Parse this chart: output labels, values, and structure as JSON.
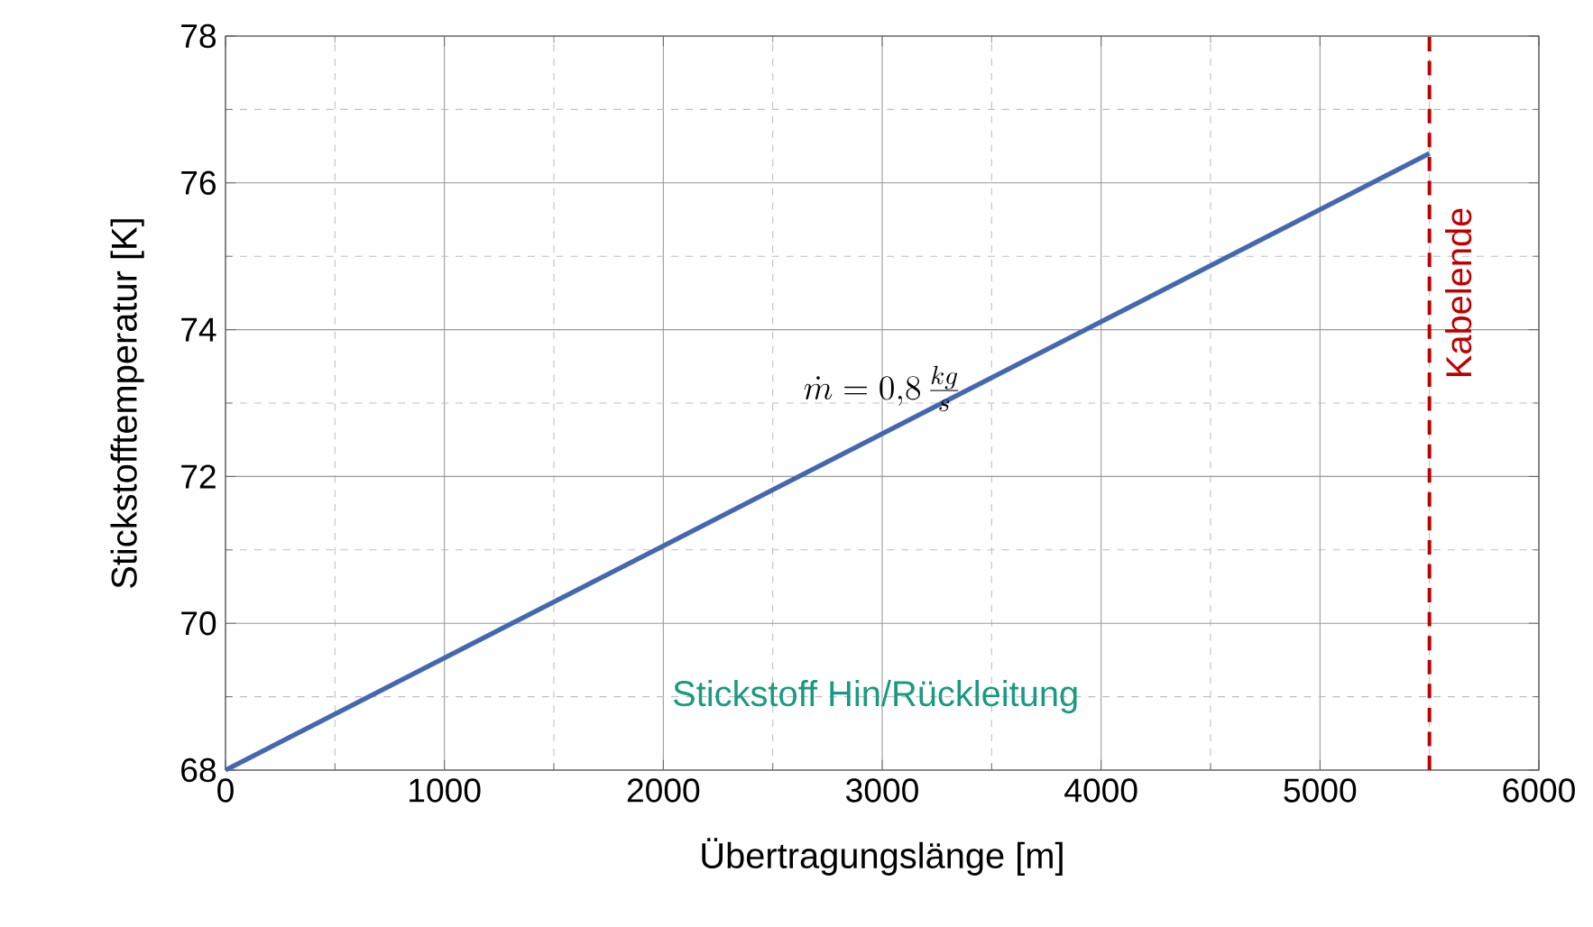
{
  "chart_data": {
    "type": "line",
    "xlabel": "Übertragungslänge [m]",
    "ylabel": "Stickstofftemperatur [K]",
    "x": [
      0,
      5500
    ],
    "series": [
      {
        "color": "#4468b0",
        "values": [
          68,
          76.4
        ]
      }
    ],
    "xlim": [
      0,
      6000
    ],
    "xticks": [
      0,
      1000,
      2000,
      3000,
      4000,
      5000,
      6000
    ],
    "ylim": [
      68,
      78
    ],
    "yticks": [
      68,
      70,
      72,
      74,
      76,
      78
    ],
    "grid": true,
    "ref_lines": [
      {
        "axis": "x",
        "value": 5500,
        "label": "Kabelende",
        "color": "#c00000",
        "line_style": "dashed"
      }
    ],
    "annotations": [
      "\\dot{m} = 0{,}8\\,\\frac{kg}{s}",
      "Stickstoff Hin/Rückleitung"
    ]
  }
}
